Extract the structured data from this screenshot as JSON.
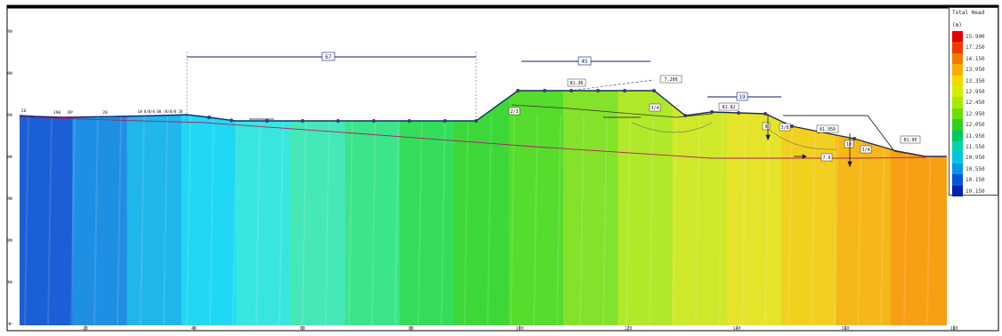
{
  "legend": {
    "title": "Total Head",
    "unit": "(m)",
    "entries": [
      {
        "value": "15.900",
        "color": "#e00000"
      },
      {
        "value": "17.250",
        "color": "#ee3a00"
      },
      {
        "value": "14.150",
        "color": "#f77a00"
      },
      {
        "value": "13.950",
        "color": "#fbac00"
      },
      {
        "value": "13.350",
        "color": "#f5d800"
      },
      {
        "value": "12.950",
        "color": "#d6ee00"
      },
      {
        "value": "12.450",
        "color": "#a6ea00"
      },
      {
        "value": "12.950",
        "color": "#6ade00"
      },
      {
        "value": "12.050",
        "color": "#2fd020"
      },
      {
        "value": "11.950",
        "color": "#00c860"
      },
      {
        "value": "11.550",
        "color": "#00d4a8"
      },
      {
        "value": "10.950",
        "color": "#00c8e0"
      },
      {
        "value": "10.550",
        "color": "#0098e8"
      },
      {
        "value": "10.150",
        "color": "#0058d8"
      },
      {
        "value": "10.150",
        "color": "#0020b8"
      }
    ]
  },
  "field_colors": [
    "#1a5fd6",
    "#1f8fe4",
    "#21b6ec",
    "#21d8f4",
    "#38e6e0",
    "#46e8b8",
    "#3ce48a",
    "#34de5a",
    "#3cd83a",
    "#56dc2c",
    "#84e22a",
    "#b0e82a",
    "#cfe82a",
    "#e6e42a",
    "#f2d020",
    "#f6b818",
    "#f8a014"
  ],
  "labels": {
    "dim_left": "67",
    "dim_top": "45",
    "dim_right": "19",
    "crest_label": "81.96",
    "crest_note": "7.200",
    "berm_label": "81.82",
    "toe_label": "81.950",
    "end_label": "81.95",
    "slope_left": "2/3",
    "slope_right": "3/4",
    "slope_b1": "3/8",
    "slope_b2": "3/4",
    "pipe_label": "7.6",
    "small_a": "6",
    "small_b": "10",
    "shore_label": "190",
    "shore_label2": "DP",
    "shore_text": "LW 0/0/0.00 /0/0/0 28",
    "left_tag": "26",
    "mid_tag": "20"
  },
  "axis": {
    "x_ticks": [
      "20",
      "40",
      "60",
      "80",
      "100",
      "120",
      "140",
      "160",
      "180"
    ],
    "y_ticks": [
      "0",
      "10",
      "20",
      "30",
      "40",
      "50",
      "60",
      "70"
    ]
  }
}
